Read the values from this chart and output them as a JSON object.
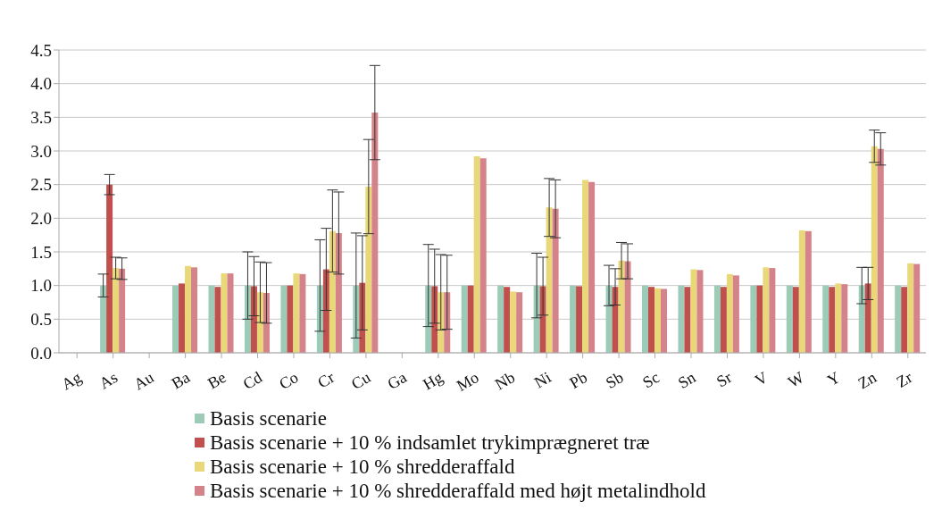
{
  "chart_data": {
    "type": "bar",
    "categories": [
      "Ag",
      "As",
      "Au",
      "Ba",
      "Be",
      "Cd",
      "Co",
      "Cr",
      "Cu",
      "Ga",
      "Hg",
      "Mo",
      "Nb",
      "Ni",
      "Pb",
      "Sb",
      "Sc",
      "Sn",
      "Sr",
      "V",
      "W",
      "Y",
      "Zn",
      "Zr"
    ],
    "series": [
      {
        "name": "Basis scenarie",
        "color": "#9ccbb8",
        "values": [
          null,
          1.0,
          null,
          1.0,
          1.0,
          1.0,
          1.0,
          1.0,
          1.0,
          null,
          1.0,
          1.0,
          1.0,
          1.0,
          1.0,
          1.0,
          1.0,
          1.0,
          1.0,
          1.0,
          1.0,
          1.0,
          1.0,
          1.0
        ],
        "errors": [
          null,
          0.17,
          null,
          null,
          null,
          0.5,
          null,
          0.68,
          0.78,
          null,
          0.61,
          null,
          null,
          0.48,
          null,
          0.3,
          null,
          null,
          null,
          null,
          null,
          null,
          0.27,
          null
        ]
      },
      {
        "name": "Basis scenarie + 10 % indsamlet trykimprægneret træ",
        "color": "#c0504d",
        "values": [
          null,
          2.5,
          null,
          1.03,
          0.98,
          0.99,
          1.0,
          1.24,
          1.04,
          null,
          0.99,
          1.0,
          0.98,
          0.99,
          0.99,
          0.98,
          0.98,
          0.98,
          0.98,
          1.0,
          0.98,
          0.98,
          1.03,
          0.98
        ],
        "errors": [
          null,
          0.15,
          null,
          null,
          null,
          0.44,
          null,
          0.61,
          0.7,
          null,
          0.55,
          null,
          null,
          0.43,
          null,
          0.27,
          null,
          null,
          null,
          null,
          null,
          null,
          0.24,
          null
        ]
      },
      {
        "name": "Basis scenarie + 10 % shredderaffald",
        "color": "#e8d87a",
        "values": [
          null,
          1.26,
          null,
          1.29,
          1.18,
          0.9,
          1.18,
          1.81,
          2.47,
          null,
          0.9,
          2.92,
          0.91,
          2.16,
          2.57,
          1.37,
          0.96,
          1.24,
          1.17,
          1.27,
          1.82,
          1.03,
          3.07,
          1.33
        ],
        "errors": [
          null,
          0.16,
          null,
          null,
          null,
          0.45,
          null,
          0.61,
          0.7,
          null,
          0.56,
          null,
          null,
          0.43,
          null,
          0.27,
          null,
          null,
          null,
          null,
          null,
          null,
          0.24,
          null
        ]
      },
      {
        "name": "Basis scenarie + 10 % shredderaffald med højt metalindhold",
        "color": "#d5838a",
        "values": [
          null,
          1.25,
          null,
          1.27,
          1.18,
          0.89,
          1.17,
          1.78,
          3.57,
          null,
          0.9,
          2.89,
          0.9,
          2.14,
          2.54,
          1.36,
          0.95,
          1.23,
          1.15,
          1.26,
          1.81,
          1.02,
          3.03,
          1.32
        ],
        "errors": [
          null,
          0.16,
          null,
          null,
          null,
          0.45,
          null,
          0.61,
          0.7,
          null,
          0.55,
          null,
          null,
          0.43,
          null,
          0.26,
          null,
          null,
          null,
          null,
          null,
          null,
          0.24,
          null
        ]
      }
    ],
    "ylim": [
      0,
      4.5
    ],
    "yticks": [
      {
        "value": 0,
        "label": "0.0"
      },
      {
        "value": 0.5,
        "label": "0.5"
      },
      {
        "value": 1,
        "label": "1.0"
      },
      {
        "value": 1.5,
        "label": "1.5"
      },
      {
        "value": 2,
        "label": "2.0"
      },
      {
        "value": 2.5,
        "label": "2.5"
      },
      {
        "value": 3,
        "label": "3.0"
      },
      {
        "value": 3.5,
        "label": "3.5"
      },
      {
        "value": 4,
        "label": "4.0"
      },
      {
        "value": 4.5,
        "label": "4.5"
      }
    ],
    "grid": "y",
    "legend": "bottom"
  }
}
